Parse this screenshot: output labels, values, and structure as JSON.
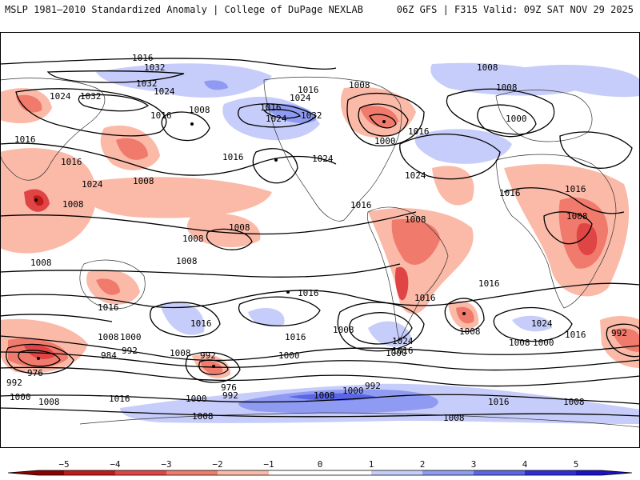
{
  "header": {
    "left_title": "MSLP 1981–2010 Standardized Anomaly | College of DuPage NEXLAB",
    "right_title": "06Z GFS | F315 Valid: 09Z SAT NOV 29 2025"
  },
  "colors": {
    "neg5": "#8b0000",
    "neg4": "#c01b1b",
    "neg3": "#e04545",
    "neg2": "#f07a6c",
    "neg1": "#fbb9a8",
    "pos1": "#c7cdfa",
    "pos2": "#8f9bf2",
    "pos3": "#5a66e6",
    "pos4": "#2d2ed8",
    "pos5": "#1a11c9",
    "neutral": "#ffffff",
    "contour": "#000000",
    "coast": "#333333"
  },
  "colorbar": {
    "ticks": [
      "−5",
      "−4",
      "−3",
      "−2",
      "−1",
      "0",
      "1",
      "2",
      "3",
      "4",
      "5"
    ]
  },
  "isobar_labels": [
    "1016",
    "1032",
    "1032",
    "1024",
    "1032",
    "1024",
    "1016",
    "1008",
    "1016",
    "1024",
    "1016",
    "1024",
    "1032",
    "1008",
    "1016",
    "1008",
    "1016",
    "1000",
    "1016",
    "1024",
    "1000",
    "1008",
    "1024",
    "1008",
    "1024",
    "1016",
    "1008",
    "1008",
    "1016",
    "1008",
    "1008",
    "1016",
    "1016",
    "1008",
    "1008",
    "1016",
    "1016",
    "1016",
    "1024",
    "1016",
    "1016",
    "992",
    "1008",
    "1000",
    "992",
    "984",
    "976",
    "992",
    "1000",
    "1008",
    "1008",
    "992",
    "976",
    "992",
    "1000",
    "1016",
    "1008",
    "1008",
    "1000",
    "1000",
    "1008",
    "992",
    "1000",
    "1016",
    "1024",
    "1016",
    "1008",
    "1000",
    "1008",
    "1008",
    "1008",
    "1016",
    "1008",
    "1016"
  ]
}
